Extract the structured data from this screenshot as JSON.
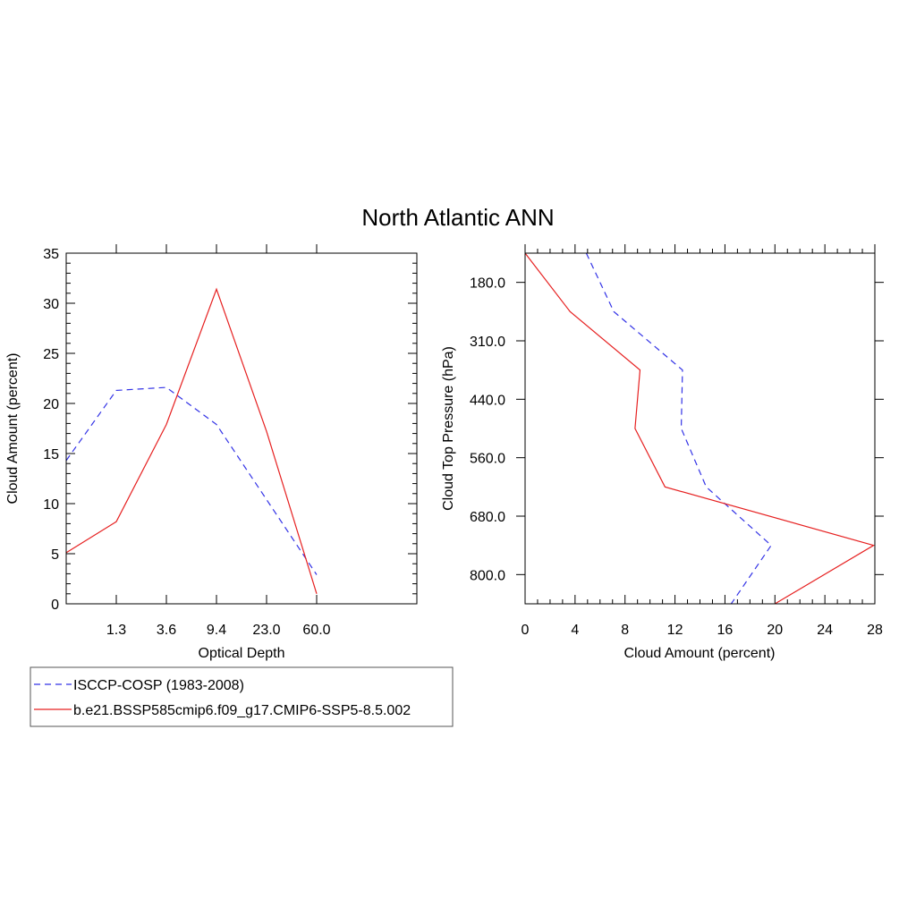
{
  "figure": {
    "title": "North Atlantic ANN"
  },
  "legend": {
    "placement": "bottom-left",
    "entries": [
      {
        "label": "ISCCP-COSP (1983-2008)",
        "color": "#3333e6",
        "dash": "dashed"
      },
      {
        "label": "b.e21.BSSP585cmip6.f09_g17.CMIP6-SSP5-8.5.002",
        "color": "#e62020",
        "dash": "solid"
      }
    ]
  },
  "chart_data": [
    {
      "type": "line",
      "xlabel": "Optical Depth",
      "ylabel": "Cloud Amount (percent)",
      "x_tick_labels": [
        "1.3",
        "3.6",
        "9.4",
        "23.0",
        "60.0"
      ],
      "x_bin_count": 7,
      "ylim": [
        0,
        35
      ],
      "y_ticks": [
        0,
        5,
        10,
        15,
        20,
        25,
        30,
        35
      ],
      "grid": false,
      "series": [
        {
          "name": "ISCCP-COSP (1983-2008)",
          "color": "#3333e6",
          "dash": "dashed",
          "values": [
            14.3,
            21.3,
            21.6,
            17.9,
            10.4,
            2.9
          ]
        },
        {
          "name": "b.e21.BSSP585cmip6.f09_g17.CMIP6-SSP5-8.5.002",
          "color": "#e62020",
          "dash": "solid",
          "values": [
            5.1,
            8.2,
            17.9,
            31.4,
            17.2,
            1.0
          ]
        }
      ]
    },
    {
      "type": "line",
      "xlabel": "Cloud Amount (percent)",
      "ylabel": "Cloud Top Pressure (hPa)",
      "xlim": [
        0,
        28
      ],
      "x_ticks": [
        0,
        4,
        8,
        12,
        16,
        20,
        24,
        28
      ],
      "y_tick_labels": [
        "180.0",
        "310.0",
        "440.0",
        "560.0",
        "680.0",
        "800.0"
      ],
      "y_bin_count": 6,
      "grid": false,
      "series": [
        {
          "name": "ISCCP-COSP (1983-2008)",
          "color": "#3333e6",
          "dash": "dashed",
          "values": [
            4.9,
            7.1,
            12.6,
            12.5,
            14.5,
            19.7,
            16.5
          ]
        },
        {
          "name": "b.e21.BSSP585cmip6.f09_g17.CMIP6-SSP5-8.5.002",
          "color": "#e62020",
          "dash": "solid",
          "values": [
            0.0,
            3.6,
            9.2,
            8.8,
            11.2,
            27.9,
            20.0
          ]
        }
      ]
    }
  ]
}
